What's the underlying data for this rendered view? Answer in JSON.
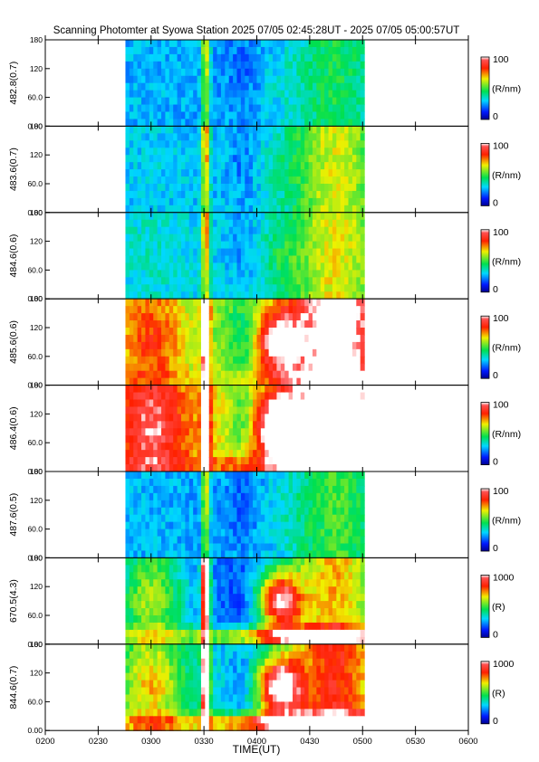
{
  "chart_data": {
    "type": "heatmap",
    "title": "Scanning Photomter at Syowa Station  2025 07/05 02:45:28UT - 2025 07/05 05:00:57UT",
    "xlabel": "TIME(UT)",
    "x_tick_labels": [
      "0200",
      "0230",
      "0300",
      "0330",
      "0400",
      "0430",
      "0500",
      "0530",
      "0600"
    ],
    "xlim_hhmm": [
      "0200",
      "0600"
    ],
    "data_range_hhmm": [
      "02:45:28",
      "05:00:57"
    ],
    "ylim": [
      0,
      180
    ],
    "y_tick_labels": [
      "0.00",
      "60.0",
      "120",
      "180"
    ],
    "panels": [
      {
        "ylabel": "482.8(0.7)",
        "unit": "(R/nm)",
        "cmax_label": "100",
        "cmin_label": "0",
        "base": 0.25,
        "event_scale": 0.5,
        "blob": 0.05,
        "post": 0.2,
        "bottom_brighten": 0.0
      },
      {
        "ylabel": "483.6(0.7)",
        "unit": "(R/nm)",
        "cmax_label": "100",
        "cmin_label": "0",
        "base": 0.28,
        "event_scale": 0.6,
        "blob": 0.05,
        "post": 0.35,
        "bottom_brighten": 0.0
      },
      {
        "ylabel": "484.6(0.6)",
        "unit": "(R/nm)",
        "cmax_label": "100",
        "cmin_label": "0",
        "base": 0.3,
        "event_scale": 0.6,
        "blob": 0.1,
        "post": 0.35,
        "bottom_brighten": 0.0
      },
      {
        "ylabel": "485.6(0.6)",
        "unit": "(R/nm)",
        "cmax_label": "100",
        "cmin_label": "0",
        "base": 0.55,
        "event_scale": 1.0,
        "blob": 0.55,
        "post": 0.55,
        "bottom_brighten": 0.15
      },
      {
        "ylabel": "486.4(0.6)",
        "unit": "(R/nm)",
        "cmax_label": "100",
        "cmin_label": "0",
        "base": 0.65,
        "event_scale": 1.1,
        "blob": 0.65,
        "post": 0.55,
        "bottom_brighten": 0.2
      },
      {
        "ylabel": "487.6(0.5)",
        "unit": "(R/nm)",
        "cmax_label": "100",
        "cmin_label": "0",
        "base": 0.25,
        "event_scale": 0.5,
        "blob": 0.05,
        "post": 0.25,
        "bottom_brighten": 0.0
      },
      {
        "ylabel": "670.5(4.3)",
        "unit": "(R)",
        "cmax_label": "1000",
        "cmin_label": "0",
        "base": 0.2,
        "event_scale": 1.3,
        "blob": 0.8,
        "post": 0.5,
        "bottom_brighten": 0.6
      },
      {
        "ylabel": "844.6(0.7)",
        "unit": "(R)",
        "cmax_label": "1000",
        "cmin_label": "0",
        "base": 0.3,
        "event_scale": 1.3,
        "blob": 0.8,
        "post": 0.55,
        "bottom_brighten": 0.7
      }
    ]
  }
}
